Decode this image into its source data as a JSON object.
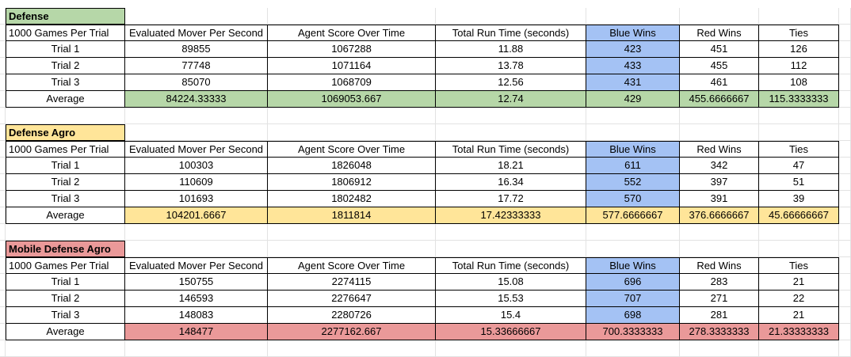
{
  "colors": {
    "defense": "#b6d7a8",
    "agro": "#ffe599",
    "mobile": "#ea9999",
    "blue_wins": "#a4c2f4"
  },
  "headers": [
    "1000 Games Per Trial",
    "Evaluated Mover Per Second",
    "Agent Score Over Time",
    "Total Run Time (seconds)",
    "Blue Wins",
    "Red Wins",
    "Ties"
  ],
  "tables": [
    {
      "title": "Defense",
      "rows": [
        [
          "Trial 1",
          "89855",
          "1067288",
          "11.88",
          "423",
          "451",
          "126"
        ],
        [
          "Trial 2",
          "77748",
          "1071164",
          "13.78",
          "433",
          "455",
          "112"
        ],
        [
          "Trial 3",
          "85070",
          "1068709",
          "12.56",
          "431",
          "461",
          "108"
        ]
      ],
      "average": [
        "Average",
        "84224.33333",
        "1069053.667",
        "12.74",
        "429",
        "455.6666667",
        "115.3333333"
      ]
    },
    {
      "title": "Defense Agro",
      "rows": [
        [
          "Trial 1",
          "100303",
          "1826048",
          "18.21",
          "611",
          "342",
          "47"
        ],
        [
          "Trial 2",
          "110609",
          "1806912",
          "16.34",
          "552",
          "397",
          "51"
        ],
        [
          "Trial 3",
          "101693",
          "1802482",
          "17.72",
          "570",
          "391",
          "39"
        ]
      ],
      "average": [
        "Average",
        "104201.6667",
        "1811814",
        "17.42333333",
        "577.6666667",
        "376.6666667",
        "45.66666667"
      ]
    },
    {
      "title": "Mobile Defense Agro",
      "rows": [
        [
          "Trial 1",
          "150755",
          "2274115",
          "15.08",
          "696",
          "283",
          "21"
        ],
        [
          "Trial 2",
          "146593",
          "2276647",
          "15.53",
          "707",
          "271",
          "22"
        ],
        [
          "Trial 3",
          "148083",
          "2280726",
          "15.4",
          "698",
          "281",
          "21"
        ]
      ],
      "average": [
        "Average",
        "148477",
        "2277162.667",
        "15.33666667",
        "700.3333333",
        "278.3333333",
        "21.33333333"
      ]
    }
  ]
}
